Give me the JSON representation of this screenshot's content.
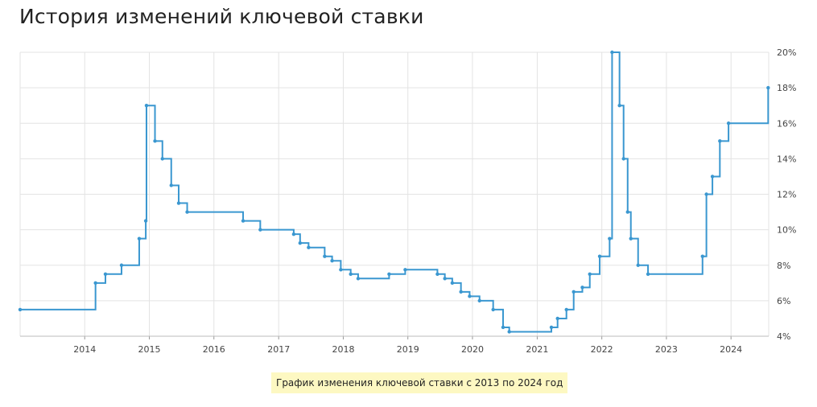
{
  "page": {
    "title": "История изменений ключевой ставки",
    "caption": "График изменения ключевой ставки с 2013 по 2024 год"
  },
  "colors": {
    "line": "#3a97d0",
    "grid": "#e3e3e3"
  },
  "chart_data": {
    "type": "line",
    "step": "after",
    "title": "История изменений ключевой ставки",
    "xlabel": "",
    "ylabel": "",
    "xlim": [
      "2013-01-01",
      "2024-08-01"
    ],
    "ylim": [
      4,
      20
    ],
    "x_ticks": [
      "2014",
      "2015",
      "2016",
      "2017",
      "2018",
      "2019",
      "2020",
      "2021",
      "2022",
      "2023",
      "2024"
    ],
    "y_ticks": [
      "4%",
      "6%",
      "8%",
      "10%",
      "12%",
      "14%",
      "16%",
      "18%",
      "20%"
    ],
    "y_axis_side": "right",
    "grid": true,
    "series": [
      {
        "x": [
          "2013-01-01",
          "2014-03-03",
          "2014-04-28",
          "2014-07-28",
          "2014-11-05",
          "2014-12-12",
          "2014-12-16",
          "2015-02-02",
          "2015-03-16",
          "2015-05-05",
          "2015-06-16",
          "2015-08-03",
          "2016-06-14",
          "2016-09-19",
          "2017-03-27",
          "2017-05-02",
          "2017-06-19",
          "2017-09-18",
          "2017-10-30",
          "2017-12-18",
          "2018-02-12",
          "2018-03-26",
          "2018-09-17",
          "2018-12-17",
          "2019-06-17",
          "2019-07-29",
          "2019-09-09",
          "2019-10-28",
          "2019-12-16",
          "2020-02-10",
          "2020-04-27",
          "2020-06-22",
          "2020-07-27",
          "2021-03-22",
          "2021-04-26",
          "2021-06-15",
          "2021-07-26",
          "2021-09-13",
          "2021-10-25",
          "2021-12-20",
          "2022-02-14",
          "2022-02-28",
          "2022-04-11",
          "2022-05-04",
          "2022-05-27",
          "2022-06-14",
          "2022-07-25",
          "2022-09-19",
          "2023-07-24",
          "2023-08-15",
          "2023-09-18",
          "2023-10-30",
          "2023-12-18",
          "2024-07-29"
        ],
        "y": [
          5.5,
          7,
          7.5,
          8,
          9.5,
          10.5,
          17,
          15,
          14,
          12.5,
          11.5,
          11,
          10.5,
          10,
          9.75,
          9.25,
          9,
          8.5,
          8.25,
          7.75,
          7.5,
          7.25,
          7.5,
          7.75,
          7.5,
          7.25,
          7,
          6.5,
          6.25,
          6,
          5.5,
          4.5,
          4.25,
          4.5,
          5,
          5.5,
          6.5,
          6.75,
          7.5,
          8.5,
          9.5,
          20,
          17,
          14,
          11,
          9.5,
          8,
          7.5,
          8.5,
          12,
          13,
          15,
          16,
          18
        ]
      }
    ]
  }
}
